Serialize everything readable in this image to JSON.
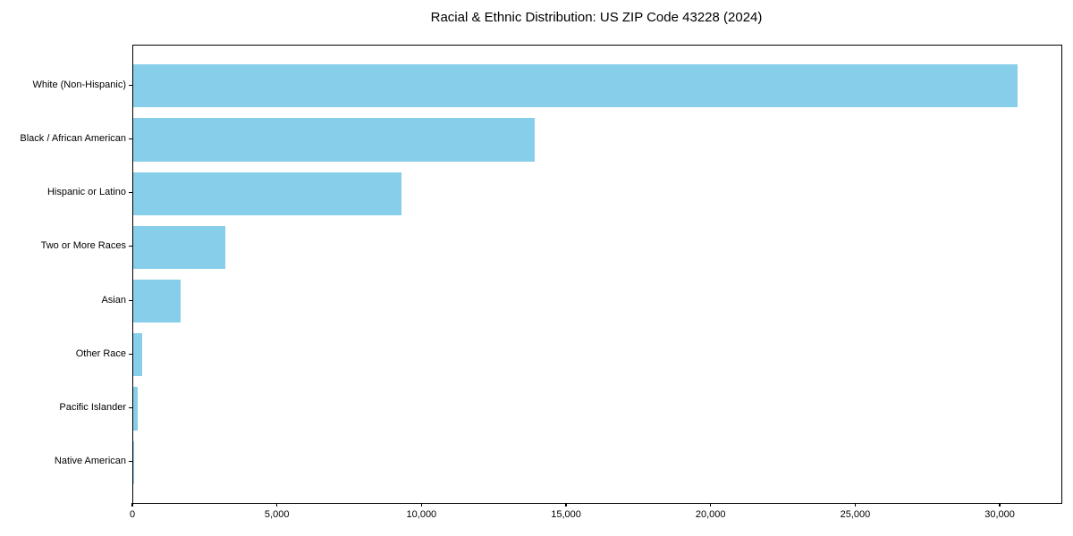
{
  "chart_data": {
    "type": "bar",
    "orientation": "horizontal",
    "title": "Racial & Ethnic Distribution: US ZIP Code 43228 (2024)",
    "categories": [
      "White (Non-Hispanic)",
      "Black / African American",
      "Hispanic or Latino",
      "Two or More Races",
      "Asian",
      "Other Race",
      "Pacific Islander",
      "Native American"
    ],
    "values": [
      30590,
      13880,
      9270,
      3190,
      1630,
      310,
      155,
      30
    ],
    "xlabel": "",
    "ylabel": "",
    "xlim": [
      0,
      32100
    ],
    "x_ticks": [
      0,
      5000,
      10000,
      15000,
      20000,
      25000,
      30000
    ],
    "x_tick_labels": [
      "0",
      "5,000",
      "10,000",
      "15,000",
      "20,000",
      "25,000",
      "30,000"
    ],
    "bar_color": "#87CEEB",
    "text_color": "#000000",
    "spine_color": "#000000",
    "grid": false
  }
}
